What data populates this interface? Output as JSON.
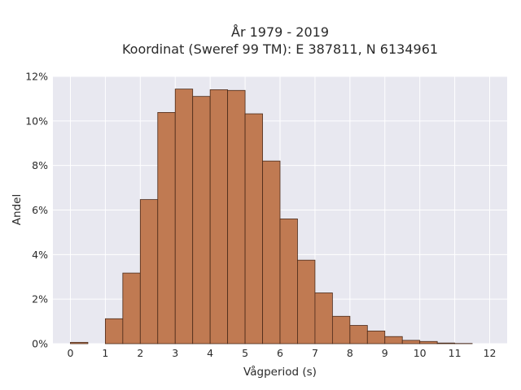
{
  "chart_data": {
    "type": "bar",
    "title_line1": "År 1979 - 2019",
    "title_line2": "Koordinat (Sweref 99 TM): E 387811, N 6134961",
    "xlabel": "Vågperiod (s)",
    "ylabel": "Andel",
    "bin_width": 0.5,
    "bin_starts": [
      0,
      0.5,
      1,
      1.5,
      2,
      2.5,
      3,
      3.5,
      4,
      4.5,
      5,
      5.5,
      6,
      6.5,
      7,
      7.5,
      8,
      8.5,
      9,
      9.5,
      10,
      10.5,
      11,
      11.5
    ],
    "values": [
      0.06,
      0.0,
      1.12,
      3.17,
      6.47,
      10.38,
      11.43,
      11.1,
      11.4,
      11.37,
      10.32,
      8.2,
      5.6,
      3.75,
      2.28,
      1.23,
      0.82,
      0.57,
      0.32,
      0.15,
      0.1,
      0.03,
      0.01,
      0.0
    ],
    "xlim": [
      -0.5,
      12.5
    ],
    "ylim": [
      0,
      12
    ],
    "x_ticks": [
      0,
      1,
      2,
      3,
      4,
      5,
      6,
      7,
      8,
      9,
      10,
      11,
      12
    ],
    "y_ticks": [
      0,
      2,
      4,
      6,
      8,
      10,
      12
    ],
    "y_tick_suffix": "%",
    "grid": true,
    "bar_color": "#c07a52",
    "bar_edge_color": "#4a2a1a",
    "plot_bg": "#e8e8f0",
    "grid_color": "#ffffff"
  }
}
